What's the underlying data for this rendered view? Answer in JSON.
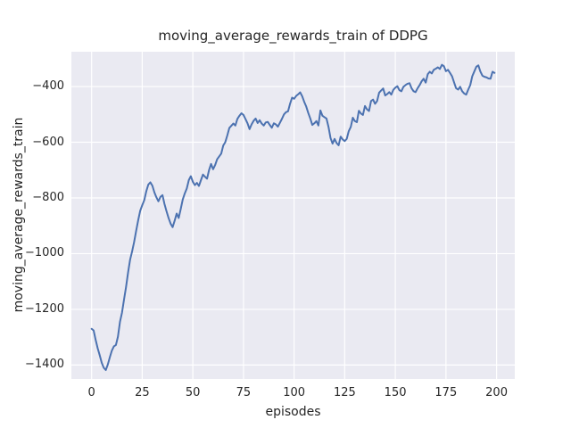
{
  "title": "moving_average_rewards_train of DDPG",
  "colors": {
    "line": "#4c72b0",
    "plot_background": "#eaeaf2",
    "grid": "#ffffff",
    "text": "#262626",
    "figure_background": "#ffffff"
  },
  "chart_data": {
    "type": "line",
    "title": "moving_average_rewards_train of DDPG",
    "xlabel": "episodes",
    "ylabel": "moving_average_rewards_train",
    "xlim": [
      -10,
      209
    ],
    "ylim": [
      -1450,
      -275
    ],
    "grid": true,
    "legend": false,
    "xticks": [
      {
        "v": 0,
        "label": "0"
      },
      {
        "v": 25,
        "label": "25"
      },
      {
        "v": 50,
        "label": "50"
      },
      {
        "v": 75,
        "label": "75"
      },
      {
        "v": 100,
        "label": "100"
      },
      {
        "v": 125,
        "label": "125"
      },
      {
        "v": 150,
        "label": "150"
      },
      {
        "v": 175,
        "label": "175"
      },
      {
        "v": 200,
        "label": "200"
      }
    ],
    "yticks": [
      {
        "v": -400,
        "label": "−400"
      },
      {
        "v": -600,
        "label": "−600"
      },
      {
        "v": -800,
        "label": "−800"
      },
      {
        "v": -1000,
        "label": "−1000"
      },
      {
        "v": -1200,
        "label": "−1200"
      },
      {
        "v": -1400,
        "label": "−1400"
      }
    ],
    "series": [
      {
        "name": "moving_average_rewards_train",
        "x_start": 0,
        "x_step": 1,
        "values": [
          -1270,
          -1276,
          -1310,
          -1340,
          -1365,
          -1392,
          -1410,
          -1418,
          -1398,
          -1372,
          -1348,
          -1333,
          -1328,
          -1298,
          -1245,
          -1212,
          -1165,
          -1120,
          -1068,
          -1022,
          -992,
          -958,
          -918,
          -880,
          -846,
          -826,
          -808,
          -776,
          -752,
          -744,
          -756,
          -780,
          -798,
          -812,
          -796,
          -790,
          -822,
          -848,
          -872,
          -892,
          -905,
          -882,
          -856,
          -872,
          -840,
          -806,
          -784,
          -766,
          -736,
          -722,
          -742,
          -754,
          -746,
          -757,
          -736,
          -716,
          -724,
          -731,
          -700,
          -678,
          -697,
          -682,
          -661,
          -651,
          -641,
          -612,
          -600,
          -576,
          -549,
          -541,
          -533,
          -540,
          -516,
          -505,
          -496,
          -502,
          -517,
          -532,
          -553,
          -536,
          -523,
          -515,
          -531,
          -521,
          -533,
          -540,
          -529,
          -527,
          -538,
          -548,
          -532,
          -536,
          -544,
          -530,
          -516,
          -500,
          -492,
          -489,
          -462,
          -440,
          -444,
          -434,
          -428,
          -421,
          -435,
          -455,
          -472,
          -495,
          -515,
          -538,
          -532,
          -524,
          -540,
          -486,
          -505,
          -510,
          -515,
          -545,
          -585,
          -605,
          -588,
          -603,
          -611,
          -580,
          -590,
          -596,
          -588,
          -560,
          -545,
          -512,
          -524,
          -528,
          -487,
          -497,
          -502,
          -470,
          -482,
          -488,
          -452,
          -447,
          -462,
          -452,
          -422,
          -414,
          -407,
          -432,
          -427,
          -420,
          -429,
          -412,
          -404,
          -399,
          -413,
          -417,
          -401,
          -395,
          -390,
          -388,
          -406,
          -417,
          -420,
          -406,
          -395,
          -381,
          -372,
          -386,
          -356,
          -347,
          -353,
          -340,
          -336,
          -331,
          -337,
          -322,
          -327,
          -345,
          -340,
          -351,
          -363,
          -385,
          -406,
          -411,
          -401,
          -417,
          -425,
          -429,
          -411,
          -395,
          -363,
          -346,
          -329,
          -324,
          -346,
          -361,
          -365,
          -367,
          -371,
          -372,
          -347,
          -351
        ]
      }
    ]
  }
}
